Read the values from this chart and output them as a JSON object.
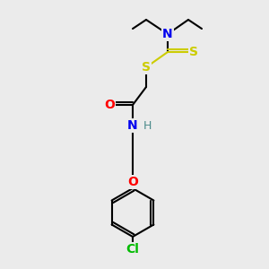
{
  "background_color": "#ebebeb",
  "atom_colors": {
    "C": "#000000",
    "N": "#0000ee",
    "O": "#ff0000",
    "S": "#cccc00",
    "Cl": "#00bb00",
    "H": "#4a8a8a"
  },
  "bond_color": "#000000",
  "figsize": [
    3.0,
    3.0
  ],
  "dpi": 100
}
